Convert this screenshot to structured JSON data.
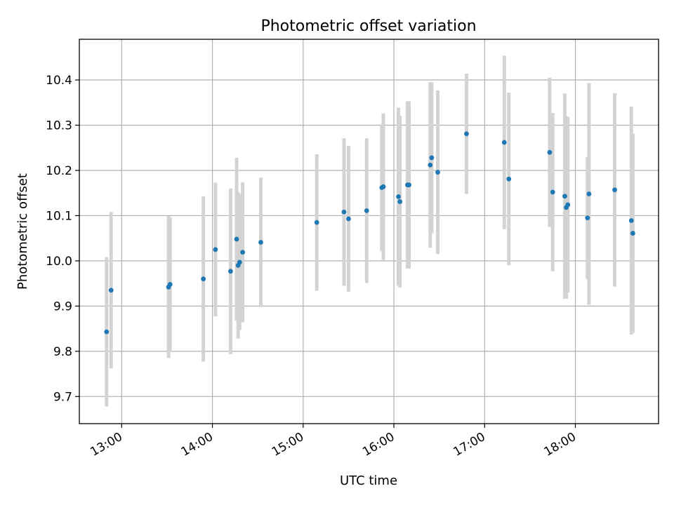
{
  "chart_data": {
    "type": "scatter",
    "title": "Photometric offset variation",
    "xlabel": "UTC time",
    "ylabel": "Photometric offset",
    "xlim": [
      "12:32",
      "18:55"
    ],
    "ylim": [
      9.64,
      10.49
    ],
    "grid": true,
    "legend": "none",
    "x_ticks": [
      "13:00",
      "14:00",
      "15:00",
      "16:00",
      "17:00",
      "18:00"
    ],
    "y_ticks": [
      "9.7",
      "9.8",
      "9.9",
      "10.0",
      "10.1",
      "10.2",
      "10.3",
      "10.4"
    ],
    "point_color": "#1f77b4",
    "errorbar_color": "#d3d3d3",
    "series": [
      {
        "points": [
          {
            "x": "12:50",
            "y": 9.843,
            "err": 0.165
          },
          {
            "x": "12:53",
            "y": 9.935,
            "err": 0.173
          },
          {
            "x": "13:31",
            "y": 9.942,
            "err": 0.157
          },
          {
            "x": "13:32",
            "y": 9.948,
            "err": 0.148
          },
          {
            "x": "13:54",
            "y": 9.96,
            "err": 0.183
          },
          {
            "x": "14:02",
            "y": 10.025,
            "err": 0.148
          },
          {
            "x": "14:12",
            "y": 9.977,
            "err": 0.183
          },
          {
            "x": "14:16",
            "y": 10.048,
            "err": 0.18
          },
          {
            "x": "14:17",
            "y": 9.99,
            "err": 0.162
          },
          {
            "x": "14:18",
            "y": 9.997,
            "err": 0.15
          },
          {
            "x": "14:20",
            "y": 10.019,
            "err": 0.155
          },
          {
            "x": "14:32",
            "y": 10.041,
            "err": 0.143
          },
          {
            "x": "15:09",
            "y": 10.085,
            "err": 0.151
          },
          {
            "x": "15:27",
            "y": 10.108,
            "err": 0.163
          },
          {
            "x": "15:30",
            "y": 10.093,
            "err": 0.161
          },
          {
            "x": "15:42",
            "y": 10.111,
            "err": 0.16
          },
          {
            "x": "15:52",
            "y": 10.162,
            "err": 0.14
          },
          {
            "x": "15:53",
            "y": 10.164,
            "err": 0.162
          },
          {
            "x": "16:03",
            "y": 10.142,
            "err": 0.197
          },
          {
            "x": "16:04",
            "y": 10.131,
            "err": 0.19
          },
          {
            "x": "16:09",
            "y": 10.168,
            "err": 0.185
          },
          {
            "x": "16:10",
            "y": 10.168,
            "err": 0.185
          },
          {
            "x": "16:24",
            "y": 10.212,
            "err": 0.183
          },
          {
            "x": "16:25",
            "y": 10.228,
            "err": 0.167
          },
          {
            "x": "16:29",
            "y": 10.196,
            "err": 0.181
          },
          {
            "x": "16:48",
            "y": 10.281,
            "err": 0.133
          },
          {
            "x": "17:13",
            "y": 10.262,
            "err": 0.192
          },
          {
            "x": "17:16",
            "y": 10.181,
            "err": 0.191
          },
          {
            "x": "17:43",
            "y": 10.24,
            "err": 0.165
          },
          {
            "x": "17:45",
            "y": 10.152,
            "err": 0.175
          },
          {
            "x": "17:53",
            "y": 10.143,
            "err": 0.227
          },
          {
            "x": "17:54",
            "y": 10.118,
            "err": 0.202
          },
          {
            "x": "17:55",
            "y": 10.124,
            "err": 0.194
          },
          {
            "x": "18:08",
            "y": 10.095,
            "err": 0.135
          },
          {
            "x": "18:09",
            "y": 10.148,
            "err": 0.245
          },
          {
            "x": "18:26",
            "y": 10.157,
            "err": 0.214
          },
          {
            "x": "18:37",
            "y": 10.089,
            "err": 0.252
          },
          {
            "x": "18:38",
            "y": 10.061,
            "err": 0.22
          }
        ]
      }
    ]
  }
}
